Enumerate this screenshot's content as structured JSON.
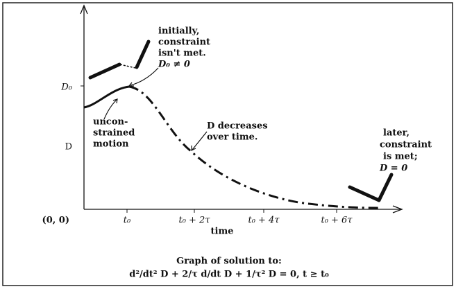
{
  "axes": {
    "y_tick_label": "D₀",
    "y_label": "D",
    "origin_label": "(0, 0)",
    "x_tick_labels": [
      "t₀",
      "t₀ + 2τ",
      "t₀ + 4τ",
      "t₀ + 6τ"
    ],
    "x_label": "time"
  },
  "annotations": {
    "initial": [
      "initially,",
      "constraint",
      "isn't met.",
      "D₀ ≠ 0"
    ],
    "unconstrained": [
      "uncon-",
      "strained",
      "motion"
    ],
    "decrease": [
      "D decreases",
      "over time."
    ],
    "later": [
      "later,",
      "constraint",
      "is met;",
      "D = 0"
    ]
  },
  "caption": {
    "title": "Graph of solution to:",
    "equation": "d²/dt² D + 2/τ d/dt D + 1/τ² D = 0,  t ≥ t₀"
  }
}
